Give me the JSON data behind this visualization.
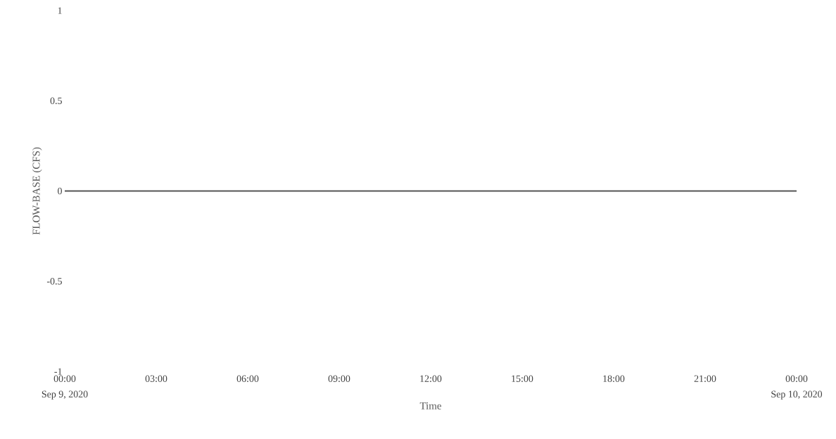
{
  "chart_data": {
    "type": "line",
    "xlabel": "Time",
    "ylabel": "FLOW-BASE (CFS)",
    "x": [
      0,
      24
    ],
    "series": [
      {
        "color": "#555555",
        "values": [
          0,
          0
        ]
      }
    ],
    "xlim": [
      0,
      24
    ],
    "xticks": [
      {
        "value": 0,
        "label": "00:00"
      },
      {
        "value": 3,
        "label": "03:00"
      },
      {
        "value": 6,
        "label": "06:00"
      },
      {
        "value": 9,
        "label": "09:00"
      },
      {
        "value": 12,
        "label": "12:00"
      },
      {
        "value": 15,
        "label": "15:00"
      },
      {
        "value": 18,
        "label": "18:00"
      },
      {
        "value": 21,
        "label": "21:00"
      },
      {
        "value": 24,
        "label": "00:00"
      }
    ],
    "ylim": [
      -1,
      1
    ],
    "yticks": [
      -1,
      -0.5,
      0,
      0.5,
      1
    ],
    "annotations": [
      "Sep 9, 2020",
      "Sep 10, 2020"
    ],
    "marker": "none",
    "line_style": "solid"
  }
}
